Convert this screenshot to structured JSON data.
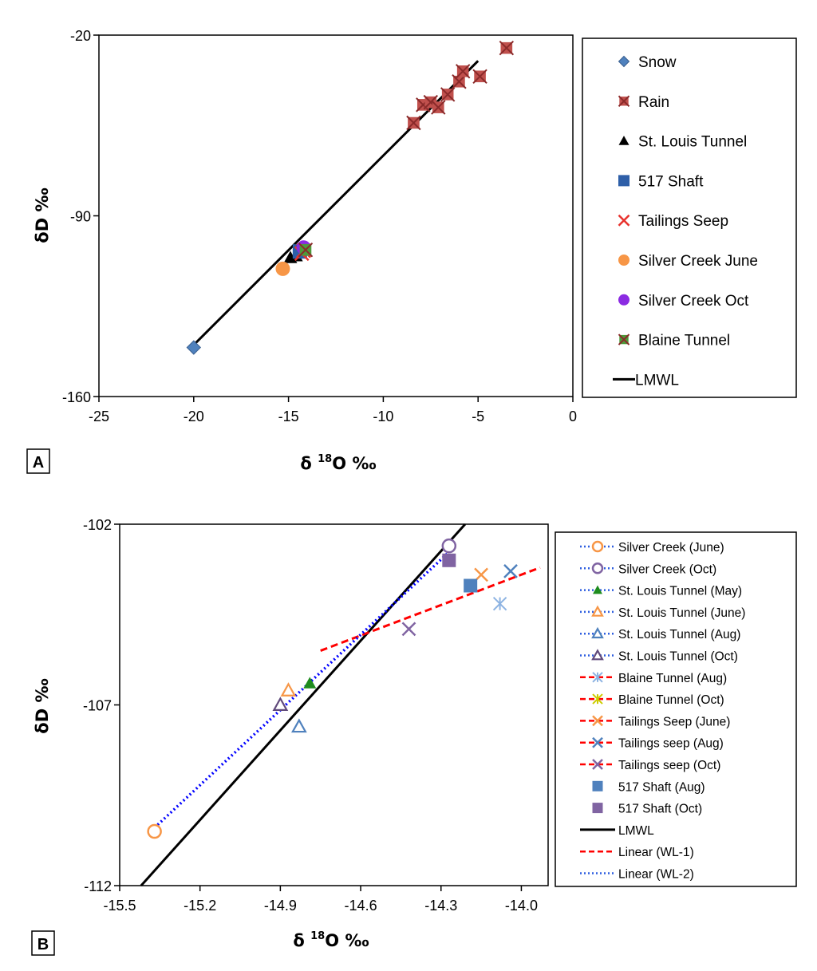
{
  "chart_data": [
    {
      "panel_label": "A",
      "type": "scatter",
      "xlabel_prefix": "δ ",
      "xlabel_sup": "18",
      "xlabel_suffix": "O ‰",
      "ylabel": "δD ‰",
      "xlim": [
        -25,
        0
      ],
      "ylim": [
        -160,
        -20
      ],
      "xticks": [
        -25,
        -20,
        -15,
        -10,
        -5,
        0
      ],
      "yticks": [
        -160,
        -90,
        -20
      ],
      "legend_position": "right",
      "series": [
        {
          "name": "Snow",
          "marker": "diamond",
          "color": "#4F81BD",
          "points": [
            [
              -20.0,
              -141.0
            ]
          ]
        },
        {
          "name": "Rain",
          "marker": "x-square",
          "color": "#C0504D",
          "points": [
            [
              -8.4,
              -54
            ],
            [
              -7.9,
              -47
            ],
            [
              -7.5,
              -46
            ],
            [
              -7.1,
              -48
            ],
            [
              -6.6,
              -43
            ],
            [
              -6.0,
              -38
            ],
            [
              -5.8,
              -34
            ],
            [
              -4.9,
              -36
            ],
            [
              -3.5,
              -25
            ]
          ]
        },
        {
          "name": "St. Louis Tunnel",
          "marker": "triangle",
          "color": "#000000",
          "points": [
            [
              -14.9,
              -106.2
            ],
            [
              -14.6,
              -105.5
            ]
          ]
        },
        {
          "name": "517 Shaft",
          "marker": "square",
          "color": "#2E5FA8",
          "points": [
            [
              -14.4,
              -103.8
            ]
          ]
        },
        {
          "name": "Tailings Seep",
          "marker": "x",
          "color": "#E8322D",
          "points": [
            [
              -14.2,
              -103.5
            ],
            [
              -14.3,
              -104.6
            ]
          ]
        },
        {
          "name": "Silver Creek June",
          "marker": "circle",
          "color": "#F79646",
          "points": [
            [
              -15.3,
              -110.5
            ]
          ]
        },
        {
          "name": "Silver Creek Oct",
          "marker": "circle",
          "color": "#8B2BE2",
          "points": [
            [
              -14.2,
              -102.3
            ]
          ]
        },
        {
          "name": "Blaine Tunnel",
          "marker": "x-square",
          "color": "#4E9A3A",
          "points": [
            [
              -14.1,
              -103.2
            ]
          ]
        },
        {
          "name": "LMWL",
          "marker": "line",
          "color": "#000000",
          "line": [
            [
              -20,
              -140
            ],
            [
              -5,
              -30
            ]
          ]
        }
      ]
    },
    {
      "panel_label": "B",
      "type": "scatter",
      "xlabel_prefix": "δ ",
      "xlabel_sup": "18",
      "xlabel_suffix": "O ‰",
      "ylabel": "δD ‰",
      "xlim": [
        -15.5,
        -13.9
      ],
      "ylim": [
        -112,
        -102
      ],
      "xticks": [
        -15.5,
        -15.2,
        -14.9,
        -14.6,
        -14.3,
        -14.0
      ],
      "xtick_labels": [
        "-15.5",
        "-15.2",
        "-14.9",
        "-14.6",
        "-14.3",
        "-14.0"
      ],
      "yticks": [
        -112,
        -107,
        -102
      ],
      "legend_position": "right",
      "series": [
        {
          "name": "Silver Creek (June)",
          "marker": "circle-open",
          "color": "#F79646",
          "legend_line": "dotted-blue",
          "points": [
            [
              -15.37,
              -110.5
            ]
          ]
        },
        {
          "name": "Silver Creek (Oct)",
          "marker": "circle-open",
          "color": "#8064A2",
          "legend_line": "dotted-blue",
          "points": [
            [
              -14.27,
              -102.6
            ]
          ]
        },
        {
          "name": "St. Louis Tunnel (May)",
          "marker": "triangle",
          "color": "#1E8C1E",
          "legend_line": "dotted-blue",
          "points": [
            [
              -14.79,
              -106.4
            ]
          ]
        },
        {
          "name": "St. Louis Tunnel (June)",
          "marker": "triangle-open",
          "color": "#F79646",
          "legend_line": "dotted-blue",
          "points": [
            [
              -14.87,
              -106.6
            ]
          ]
        },
        {
          "name": "St. Louis Tunnel (Aug)",
          "marker": "triangle-open",
          "color": "#4F81BD",
          "legend_line": "dotted-blue",
          "points": [
            [
              -14.83,
              -107.6
            ]
          ]
        },
        {
          "name": "St. Louis Tunnel (Oct)",
          "marker": "triangle-open",
          "color": "#604A7B",
          "legend_line": "dotted-blue",
          "points": [
            [
              -14.9,
              -107.0
            ]
          ]
        },
        {
          "name": "Blaine Tunnel (Aug)",
          "marker": "asterisk",
          "color": "#8DB3E2",
          "legend_line": "dashed-red",
          "points": [
            [
              -14.08,
              -104.2
            ]
          ]
        },
        {
          "name": "Blaine Tunnel (Oct)",
          "marker": "asterisk",
          "color": "#CCCC00",
          "legend_line": "dashed-red",
          "points": []
        },
        {
          "name": "Tailings Seep (June)",
          "marker": "x",
          "color": "#F79646",
          "legend_line": "dashed-red",
          "points": [
            [
              -14.15,
              -103.4
            ]
          ]
        },
        {
          "name": "Tailings seep (Aug)",
          "marker": "x",
          "color": "#4F81BD",
          "legend_line": "dashed-red",
          "points": [
            [
              -14.04,
              -103.3
            ]
          ]
        },
        {
          "name": "Tailings seep (Oct)",
          "marker": "x",
          "color": "#8064A2",
          "legend_line": "dashed-red",
          "points": [
            [
              -14.42,
              -104.9
            ]
          ]
        },
        {
          "name": "517 Shaft (Aug)",
          "marker": "square",
          "color": "#4F81BD",
          "legend_line": "none",
          "points": [
            [
              -14.19,
              -103.7
            ]
          ]
        },
        {
          "name": "517 Shaft (Oct)",
          "marker": "square",
          "color": "#8064A2",
          "legend_line": "none",
          "points": [
            [
              -14.27,
              -103.0
            ]
          ]
        },
        {
          "name": "LMWL",
          "marker": "line",
          "color": "#000000",
          "legend_line": "solid-black",
          "line": [
            [
              -15.42,
              -112.0
            ],
            [
              -14.21,
              -102.0
            ]
          ]
        },
        {
          "name": "Linear (WL-1)",
          "marker": "line",
          "color": "#FF0000",
          "legend_line": "dashed-red",
          "line": [
            [
              -14.75,
              -105.5
            ],
            [
              -13.93,
              -103.2
            ]
          ]
        },
        {
          "name": "Linear (WL-2)",
          "marker": "line",
          "color": "#0000FF",
          "legend_line": "dotted-blue",
          "line": [
            [
              -15.37,
              -110.4
            ],
            [
              -14.26,
              -102.7
            ]
          ]
        }
      ]
    }
  ]
}
